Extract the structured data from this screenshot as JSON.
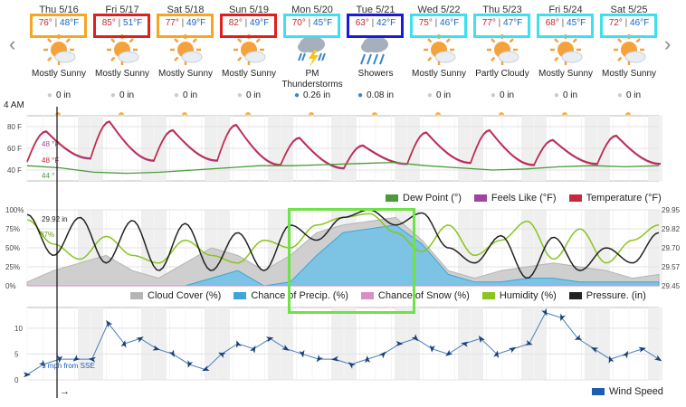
{
  "nav": {
    "prev": "‹",
    "next": "›"
  },
  "days": [
    {
      "label": "Thu 5/16",
      "hi": "76°",
      "lo": "48°F",
      "icon": "sunny-icon",
      "condition": "Mostly Sunny",
      "precip": "0 in",
      "box": "#f5a623"
    },
    {
      "label": "Fri 5/17",
      "hi": "85°",
      "lo": "51°F",
      "icon": "sunny-icon",
      "condition": "Mostly Sunny",
      "precip": "0 in",
      "box": "#e02020"
    },
    {
      "label": "Sat 5/18",
      "hi": "77°",
      "lo": "49°F",
      "icon": "sunny-icon",
      "condition": "Mostly Sunny",
      "precip": "0 in",
      "box": "#f5a623"
    },
    {
      "label": "Sun 5/19",
      "hi": "82°",
      "lo": "49°F",
      "icon": "sunny-icon",
      "condition": "Mostly Sunny",
      "precip": "0 in",
      "box": "#e02020"
    },
    {
      "label": "Mon 5/20",
      "hi": "70°",
      "lo": "45°F",
      "icon": "thunderstorm-icon",
      "condition": "PM Thunderstorms",
      "precip": "0.26 in",
      "box": "#3ee0f0"
    },
    {
      "label": "Tue 5/21",
      "hi": "63°",
      "lo": "42°F",
      "icon": "showers-icon",
      "condition": "Showers",
      "precip": "0.08 in",
      "box": "#1a1adb"
    },
    {
      "label": "Wed 5/22",
      "hi": "75°",
      "lo": "46°F",
      "icon": "sunny-icon",
      "condition": "Mostly Sunny",
      "precip": "0 in",
      "box": "#3ee0f0"
    },
    {
      "label": "Thu 5/23",
      "hi": "77°",
      "lo": "47°F",
      "icon": "partly-cloudy-icon",
      "condition": "Partly Cloudy",
      "precip": "0 in",
      "box": "#3ee0f0"
    },
    {
      "label": "Fri 5/24",
      "hi": "68°",
      "lo": "45°F",
      "icon": "sunny-icon",
      "condition": "Mostly Sunny",
      "precip": "0 in",
      "box": "#3ee0f0"
    },
    {
      "label": "Sat 5/25",
      "hi": "72°",
      "lo": "46°F",
      "icon": "sunny-icon",
      "condition": "Mostly Sunny",
      "precip": "0 in",
      "box": "#3ee0f0"
    }
  ],
  "time_label": "4 AM",
  "cursor_arrow": "→",
  "colors": {
    "temperature": "#c8283c",
    "feels_like": "#a0449c",
    "dew_point": "#4a9a3c",
    "cloud_cover": "#b4b4b4",
    "precip_chance": "#3aa7d6",
    "snow_chance": "#d88ec6",
    "humidity": "#8ac41c",
    "pressure": "#222222",
    "wind": "#1a5fb4",
    "highlight": "#6ee246"
  },
  "chart_data": [
    {
      "type": "line",
      "y_ticks": [
        "80 F",
        "60 F",
        "40 F"
      ],
      "ylim": [
        30,
        90
      ],
      "readouts": {
        "temperature": "48 °F",
        "feels_like": "48 °F",
        "dew_point": "44 °"
      },
      "series": [
        {
          "name": "Temperature (°F)",
          "days_hi": [
            76,
            85,
            77,
            82,
            70,
            63,
            75,
            77,
            68,
            72
          ],
          "days_lo": [
            48,
            51,
            49,
            49,
            45,
            42,
            46,
            47,
            45,
            46
          ]
        },
        {
          "name": "Feels Like (°F)"
        },
        {
          "name": "Dew Point (°)",
          "values": [
            44,
            42,
            38,
            37,
            38,
            40,
            42,
            44,
            44,
            45,
            46,
            47,
            44,
            42,
            40,
            41,
            43,
            44,
            43,
            44
          ]
        }
      ],
      "legend": [
        "Dew Point (°)",
        "Feels Like (°F)",
        "Temperature (°F)"
      ],
      "legend_position": "bottom-right"
    },
    {
      "type": "area",
      "y_ticks_left": [
        "100%",
        "75%",
        "50%",
        "25%",
        "0%"
      ],
      "y_ticks_right": [
        "29.95",
        "29.82",
        "29.70",
        "29.57",
        "29.45"
      ],
      "readouts": {
        "pressure": "29.92 in",
        "humidity": "87%"
      },
      "series": [
        {
          "name": "Cloud Cover (%)",
          "values": [
            5,
            20,
            30,
            40,
            20,
            10,
            30,
            50,
            40,
            20,
            40,
            70,
            80,
            85,
            90,
            60,
            20,
            10,
            20,
            25,
            30,
            25,
            20,
            10,
            15
          ]
        },
        {
          "name": "Chance of Precip. (%)",
          "values": [
            0,
            0,
            0,
            0,
            0,
            0,
            0,
            10,
            20,
            0,
            5,
            40,
            70,
            75,
            80,
            55,
            15,
            5,
            5,
            10,
            10,
            5,
            5,
            5,
            5
          ]
        },
        {
          "name": "Chance of Snow (%)",
          "values": [
            0,
            0,
            0,
            0,
            0,
            0,
            0,
            0,
            0,
            0,
            0,
            0,
            0,
            0,
            0,
            0,
            0,
            0,
            0,
            0,
            0,
            0,
            0,
            0,
            0
          ]
        },
        {
          "name": "Humidity (%)",
          "values": [
            87,
            55,
            35,
            65,
            40,
            30,
            60,
            40,
            30,
            60,
            50,
            80,
            90,
            95,
            70,
            45,
            80,
            40,
            60,
            85,
            35,
            75,
            30,
            60,
            80
          ]
        },
        {
          "name": "Pressure. (in)",
          "values": [
            29.92,
            29.65,
            29.9,
            29.6,
            29.88,
            29.55,
            29.86,
            29.55,
            29.8,
            29.55,
            29.85,
            29.75,
            29.9,
            29.95,
            29.85,
            29.93,
            29.7,
            29.6,
            29.78,
            29.5,
            29.77,
            29.55,
            29.7,
            29.6,
            29.8
          ]
        }
      ],
      "legend": [
        "Cloud Cover (%)",
        "Chance of Precip. (%)",
        "Chance of Snow (%)",
        "Humidity (%)",
        "Pressure. (in)"
      ],
      "legend_position": "bottom"
    },
    {
      "type": "line",
      "y_ticks": [
        "10",
        "5",
        "0"
      ],
      "ylim": [
        0,
        14
      ],
      "readout": "1 mph from SSE",
      "series": [
        {
          "name": "Wind Speed",
          "values": [
            1,
            3,
            4,
            4,
            4,
            11,
            7,
            8,
            6,
            5,
            3,
            2,
            5,
            7,
            6,
            8,
            6,
            5,
            4,
            4,
            3,
            4,
            5,
            7,
            8,
            6,
            5,
            7,
            8,
            5,
            6,
            7,
            13,
            12,
            8,
            6,
            4,
            5,
            6,
            4
          ]
        }
      ],
      "legend": [
        "Wind Speed"
      ],
      "legend_position": "bottom-right"
    }
  ]
}
